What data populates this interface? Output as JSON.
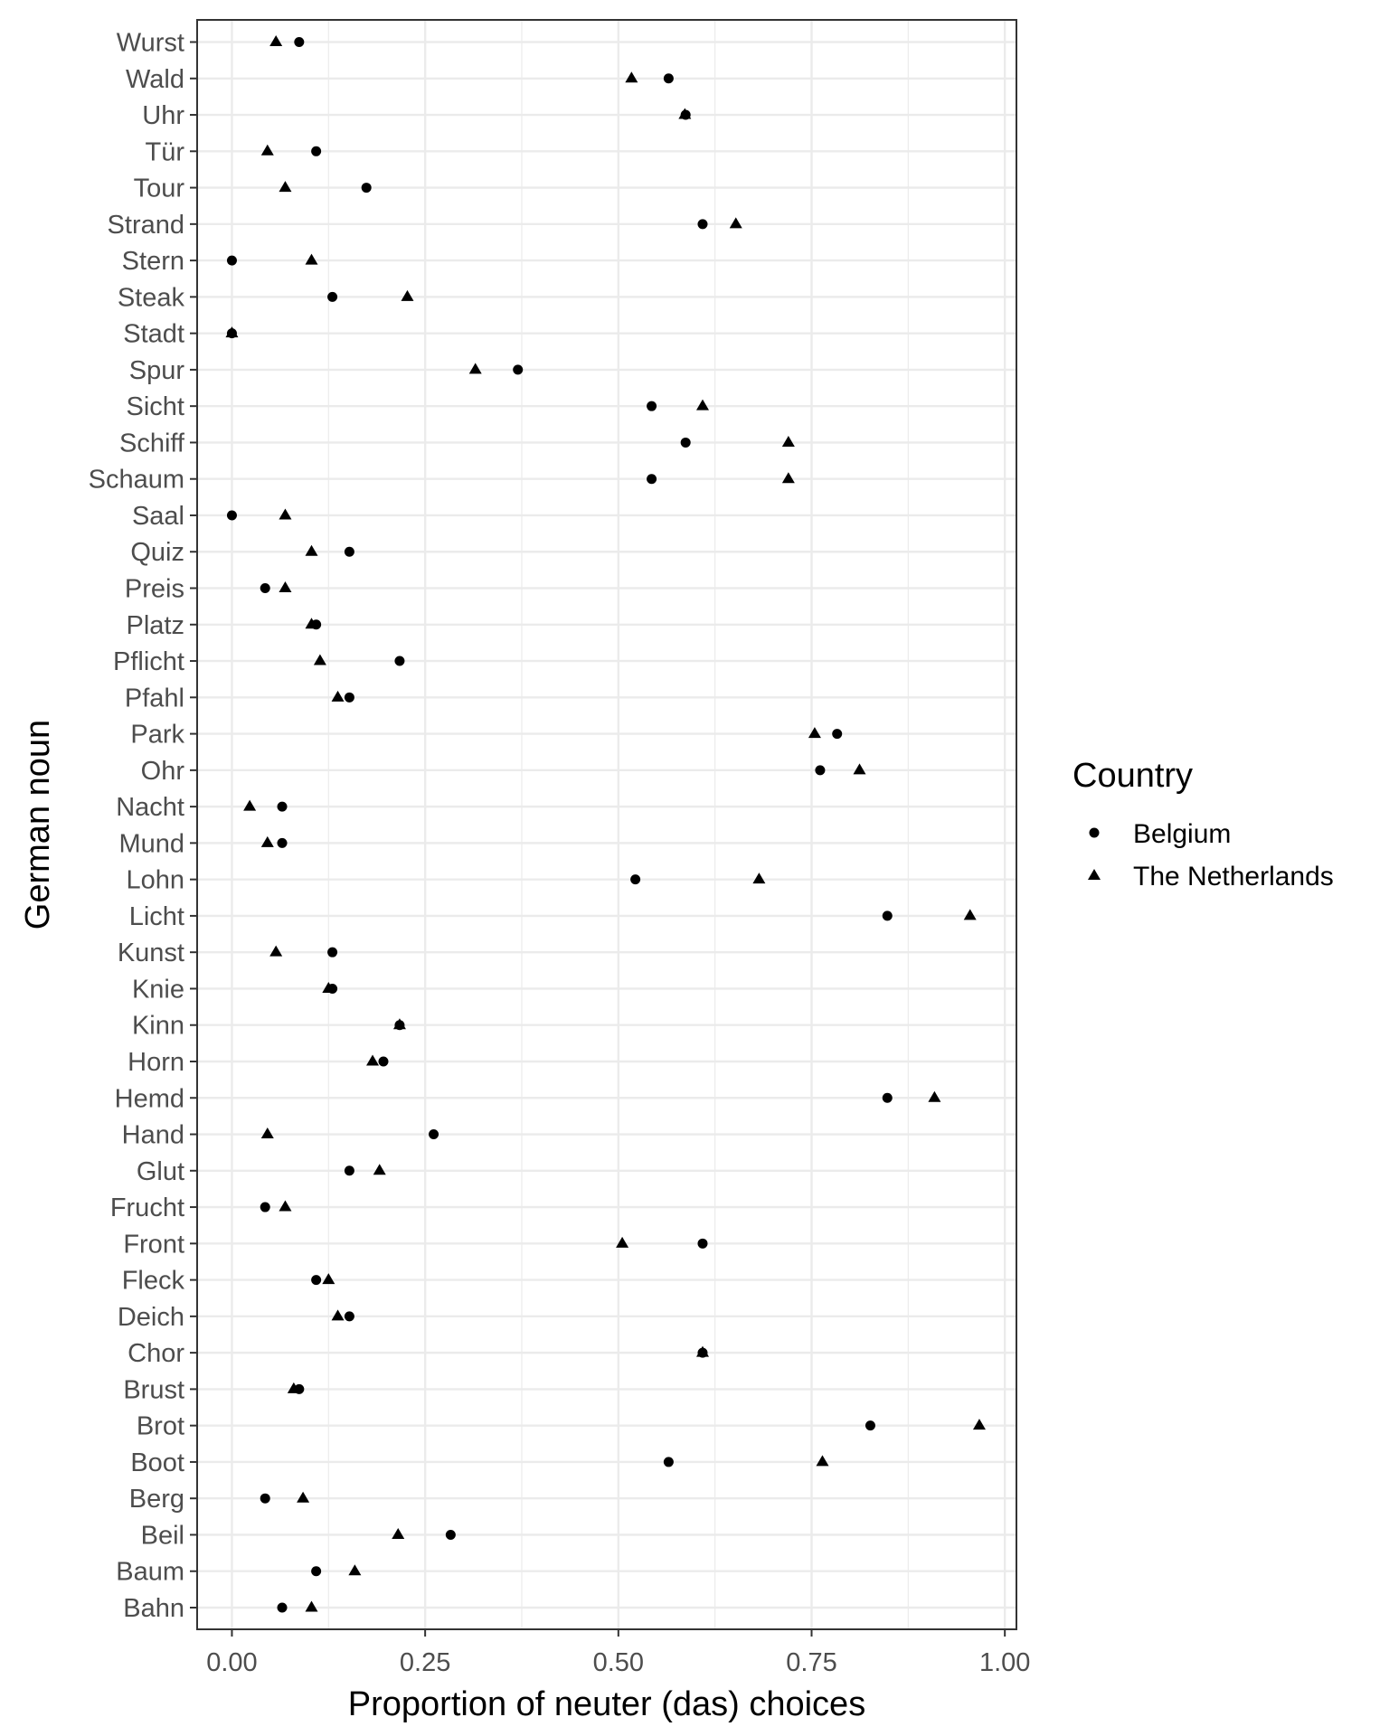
{
  "chart_data": {
    "type": "scatter",
    "xlabel": "Proportion of neuter (das) choices",
    "ylabel": "German noun",
    "xlim": [
      -0.045,
      1.015
    ],
    "x_ticks": [
      0,
      0.25,
      0.5,
      0.75,
      1
    ],
    "x_tick_labels": [
      "0.00",
      "0.25",
      "0.50",
      "0.75",
      "1.00"
    ],
    "grid": true,
    "legend": {
      "title": "Country",
      "position": "right",
      "entries": [
        {
          "label": "Belgium",
          "shape": "circle"
        },
        {
          "label": "The Netherlands",
          "shape": "triangle"
        }
      ]
    },
    "categories": [
      "Wurst",
      "Wald",
      "Uhr",
      "Tür",
      "Tour",
      "Strand",
      "Stern",
      "Steak",
      "Stadt",
      "Spur",
      "Sicht",
      "Schiff",
      "Schaum",
      "Saal",
      "Quiz",
      "Preis",
      "Platz",
      "Pflicht",
      "Pfahl",
      "Park",
      "Ohr",
      "Nacht",
      "Mund",
      "Lohn",
      "Licht",
      "Kunst",
      "Knie",
      "Kinn",
      "Horn",
      "Hemd",
      "Hand",
      "Glut",
      "Frucht",
      "Front",
      "Fleck",
      "Deich",
      "Chor",
      "Brust",
      "Brot",
      "Boot",
      "Berg",
      "Beil",
      "Baum",
      "Bahn"
    ],
    "series": [
      {
        "name": "Belgium",
        "shape": "circle",
        "values": [
          0.087,
          0.565,
          0.587,
          0.109,
          0.174,
          0.609,
          0.0,
          0.13,
          0.0,
          0.37,
          0.543,
          0.587,
          0.543,
          0.0,
          0.152,
          0.043,
          0.109,
          0.217,
          0.152,
          0.783,
          0.761,
          0.065,
          0.065,
          0.522,
          0.848,
          0.13,
          0.13,
          0.217,
          0.196,
          0.848,
          0.261,
          0.152,
          0.043,
          0.609,
          0.109,
          0.152,
          0.609,
          0.087,
          0.826,
          0.565,
          0.043,
          0.283,
          0.109,
          0.065
        ]
      },
      {
        "name": "The Netherlands",
        "shape": "triangle",
        "values": [
          0.057,
          0.517,
          0.586,
          0.046,
          0.069,
          0.652,
          0.103,
          0.227,
          0.0,
          0.315,
          0.609,
          0.72,
          0.72,
          0.069,
          0.103,
          0.069,
          0.103,
          0.114,
          0.137,
          0.754,
          0.812,
          0.023,
          0.046,
          0.682,
          0.955,
          0.057,
          0.125,
          0.217,
          0.182,
          0.909,
          0.046,
          0.191,
          0.069,
          0.505,
          0.125,
          0.137,
          0.609,
          0.08,
          0.967,
          0.764,
          0.092,
          0.215,
          0.159,
          0.103
        ]
      }
    ]
  }
}
